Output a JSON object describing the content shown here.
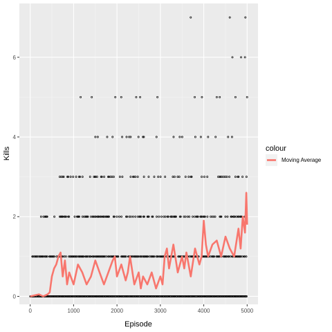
{
  "chart_data": {
    "type": "scatter",
    "xlabel": "Episode",
    "ylabel": "Kills",
    "xlim": [
      -250,
      5250
    ],
    "ylim": [
      -0.2,
      7.35
    ],
    "x_ticks": [
      0,
      1000,
      2000,
      3000,
      4000,
      5000
    ],
    "y_ticks": [
      0,
      2,
      4,
      6
    ],
    "grid": true,
    "legend": {
      "title": "colour",
      "position": "right",
      "entries": [
        "Moving Average"
      ]
    },
    "colors": {
      "panel": "#ebebeb",
      "grid_major": "#ffffff",
      "grid_minor": "#f5f5f5",
      "points": "#000000",
      "moving_average": "#f8766d"
    },
    "series": [
      {
        "kind": "points",
        "note_levels": [
          0,
          1,
          2,
          3,
          4,
          5,
          6,
          7
        ],
        "ranges": [
          {
            "y": 0,
            "from": 0,
            "to": 5000,
            "density": 1.0
          },
          {
            "y": 1,
            "from": 30,
            "to": 5000,
            "density": 0.75
          },
          {
            "y": 2,
            "from": 250,
            "to": 5000,
            "density": 0.5
          },
          {
            "y": 3,
            "from": 680,
            "to": 5000,
            "density": 0.25
          },
          {
            "y": 4,
            "from": 1450,
            "to": 5000,
            "density": 0.12
          },
          {
            "y": 5,
            "from": 680,
            "to": 5000,
            "density": 0.06
          }
        ],
        "extra_points": [
          {
            "x": 3700,
            "y": 7
          },
          {
            "x": 4600,
            "y": 7
          },
          {
            "x": 4960,
            "y": 7
          },
          {
            "x": 4660,
            "y": 6
          },
          {
            "x": 4860,
            "y": 6
          },
          {
            "x": 4950,
            "y": 6
          },
          {
            "x": 250,
            "y": 2
          }
        ]
      },
      {
        "name": "Moving Average",
        "kind": "line",
        "x": [
          0,
          200,
          300,
          400,
          450,
          500,
          550,
          600,
          650,
          700,
          750,
          800,
          850,
          900,
          1000,
          1100,
          1200,
          1300,
          1400,
          1500,
          1600,
          1700,
          1800,
          1900,
          1950,
          2000,
          2100,
          2200,
          2250,
          2300,
          2400,
          2500,
          2550,
          2600,
          2700,
          2800,
          2900,
          3000,
          3050,
          3100,
          3150,
          3200,
          3300,
          3400,
          3500,
          3550,
          3600,
          3700,
          3800,
          3900,
          3950,
          4000,
          4050,
          4100,
          4200,
          4300,
          4400,
          4500,
          4600,
          4700,
          4800,
          4850,
          4900,
          4950,
          4980,
          5000
        ],
        "y": [
          0.0,
          0.05,
          0.0,
          0.05,
          0.1,
          0.5,
          0.7,
          0.8,
          1.0,
          1.1,
          0.5,
          0.9,
          0.3,
          0.6,
          0.3,
          0.8,
          0.6,
          0.3,
          0.5,
          0.9,
          0.6,
          0.3,
          0.6,
          0.9,
          1.0,
          0.5,
          0.8,
          0.4,
          0.6,
          1.0,
          0.3,
          0.6,
          0.2,
          0.5,
          0.3,
          0.6,
          0.2,
          0.5,
          0.3,
          1.0,
          1.2,
          0.7,
          1.3,
          0.6,
          1.0,
          0.7,
          1.1,
          0.5,
          1.2,
          0.8,
          1.0,
          1.9,
          1.3,
          1.0,
          1.3,
          1.4,
          1.0,
          1.5,
          1.2,
          1.0,
          1.7,
          1.2,
          2.0,
          1.6,
          2.6,
          1.8
        ]
      }
    ]
  }
}
